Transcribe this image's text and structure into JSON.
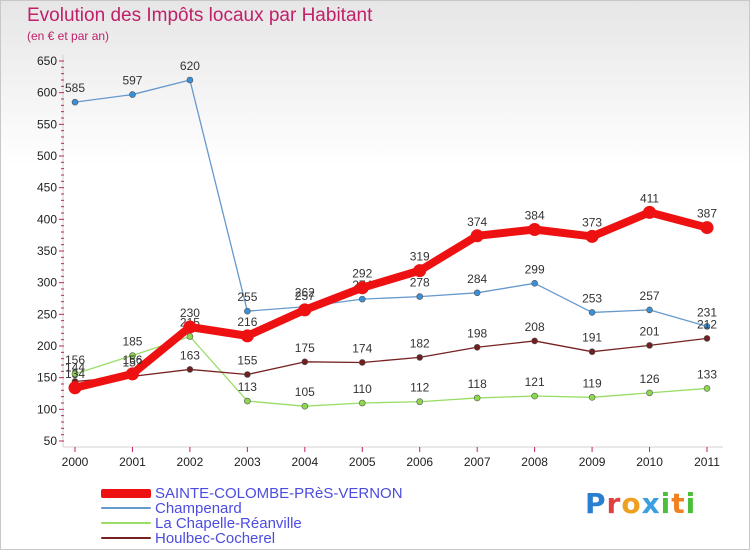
{
  "chart_data": {
    "type": "line",
    "title": "Evolution des Impôts locaux par Habitant",
    "subtitle": "(en € et par an)",
    "x": [
      "2000",
      "2001",
      "2002",
      "2003",
      "2004",
      "2005",
      "2006",
      "2007",
      "2008",
      "2009",
      "2010",
      "2011"
    ],
    "ylim": [
      50,
      650
    ],
    "yticks": [
      50,
      100,
      150,
      200,
      250,
      300,
      350,
      400,
      450,
      500,
      550,
      600,
      650
    ],
    "grid": false,
    "legend_position": "bottom-left",
    "series": [
      {
        "name": "Champenard",
        "color": "#6699cc",
        "marker_color": "#3a8fd6",
        "values": [
          585,
          597,
          620,
          255,
          262,
          274,
          278,
          284,
          299,
          253,
          257,
          231
        ],
        "labels": [
          "585",
          "597",
          "620",
          "255",
          "262",
          "274",
          "278",
          "284",
          "299",
          "253",
          "257",
          "231"
        ]
      },
      {
        "name": "La Chapelle-Réanville",
        "color": "#99dd66",
        "marker_color": "#8ed84e",
        "values": [
          156,
          185,
          215,
          113,
          105,
          110,
          112,
          118,
          121,
          119,
          126,
          133
        ],
        "labels": [
          "156",
          "185",
          "215",
          "113",
          "105",
          "110",
          "112",
          "118",
          "121",
          "119",
          "126",
          "133"
        ]
      },
      {
        "name": "Houlbec-Cocherel",
        "color": "#772222",
        "marker_color": "#6e1f1f",
        "values": [
          144,
          152,
          163,
          155,
          175,
          174,
          182,
          198,
          208,
          191,
          201,
          212
        ],
        "labels": [
          "144",
          "152",
          "163",
          "155",
          "175",
          "174",
          "182",
          "198",
          "208",
          "191",
          "201",
          "212"
        ]
      },
      {
        "name": "SAINTE-COLOMBE-PRèS-VERNON",
        "color": "#ee1111",
        "marker_color": "#ee1111",
        "thick": true,
        "values": [
          134,
          156,
          230,
          216,
          257,
          292,
          319,
          374,
          384,
          373,
          411,
          387
        ],
        "labels": [
          "134",
          "156",
          "230",
          "216",
          "257",
          "292",
          "319",
          "374",
          "384",
          "373",
          "411",
          "387"
        ]
      }
    ]
  },
  "legend": [
    {
      "label": "SAINTE-COLOMBE-PRèS-VERNON",
      "color": "#ee1111",
      "thick": true
    },
    {
      "label": "Champenard",
      "color": "#6699cc"
    },
    {
      "label": "La Chapelle-Réanville",
      "color": "#99dd66"
    },
    {
      "label": "Houlbec-Cocherel",
      "color": "#772222"
    }
  ],
  "brand": {
    "letters": [
      "P",
      "r",
      "o",
      "x",
      "i",
      "t",
      "i"
    ],
    "colors": [
      "#2a7fd0",
      "#e04040",
      "#f0a020",
      "#3aa0e0",
      "#4bbf3a",
      "#f08020",
      "#4bbf3a"
    ]
  }
}
